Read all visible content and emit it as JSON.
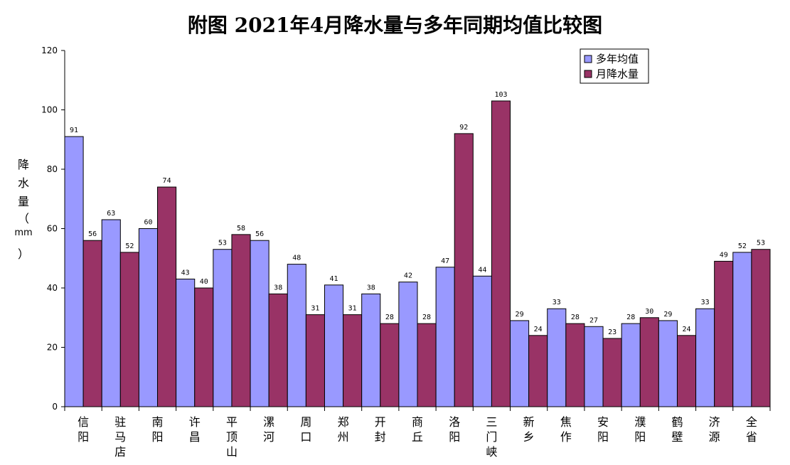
{
  "chart_data": {
    "type": "bar",
    "title": "附图      2021年4月降水量与多年同期均值比较图",
    "ylabel": "降水量（mm）",
    "ylim": [
      0,
      120
    ],
    "yticks": [
      0,
      20,
      40,
      60,
      80,
      100,
      120
    ],
    "categories": [
      "信阳",
      "驻马店",
      "南阳",
      "许昌",
      "平顶山",
      "漯河",
      "周口",
      "郑州",
      "开封",
      "商丘",
      "洛阳",
      "三门峡",
      "新乡",
      "焦作",
      "安阳",
      "濮阳",
      "鹤壁",
      "济源",
      "全省"
    ],
    "series": [
      {
        "name": "多年均值",
        "color": "#9999ff",
        "values": [
          91,
          63,
          60,
          43,
          53,
          56,
          48,
          41,
          38,
          42,
          47,
          44,
          29,
          33,
          27,
          28,
          29,
          33,
          52
        ]
      },
      {
        "name": "月降水量",
        "color": "#993366",
        "values": [
          56,
          52,
          74,
          40,
          58,
          38,
          31,
          31,
          28,
          28,
          92,
          103,
          24,
          28,
          23,
          30,
          24,
          49,
          53
        ]
      }
    ],
    "legend_position": "top-right",
    "grid": false
  }
}
